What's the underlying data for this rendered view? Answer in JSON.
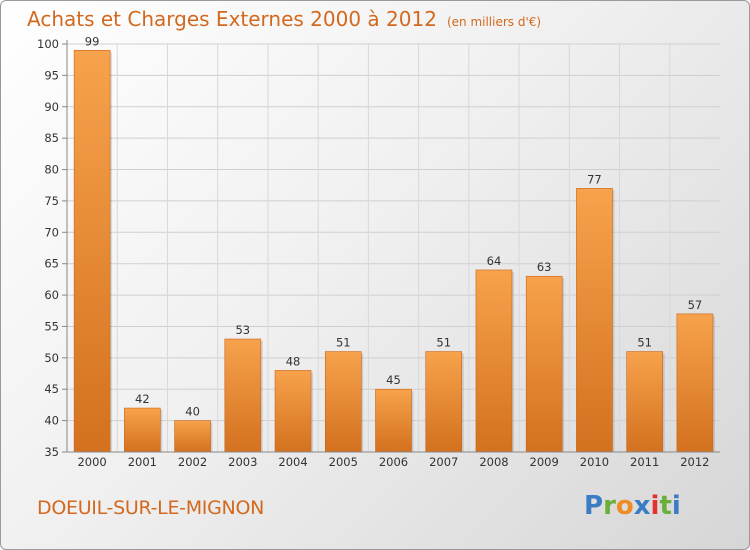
{
  "chart_data": {
    "type": "bar",
    "title": "Achats et Charges Externes 2000 à 2012",
    "subtitle": "(en milliers d'€)",
    "categories": [
      "2000",
      "2001",
      "2002",
      "2003",
      "2004",
      "2005",
      "2006",
      "2007",
      "2008",
      "2009",
      "2010",
      "2011",
      "2012"
    ],
    "values": [
      99,
      42,
      40,
      53,
      48,
      51,
      45,
      51,
      64,
      63,
      77,
      51,
      57
    ],
    "ylim": [
      35,
      100
    ],
    "yticks": [
      35,
      40,
      45,
      50,
      55,
      60,
      65,
      70,
      75,
      80,
      85,
      90,
      95,
      100
    ],
    "grid": true,
    "bar_color": "#f0943a",
    "bar_color_dark": "#d26e1c"
  },
  "commune": "DOEUIL-SUR-LE-MIGNON",
  "logo": {
    "text": "Proxiti",
    "letters": [
      "P",
      "r",
      "o",
      "x",
      "i",
      "t",
      "i"
    ],
    "colors": [
      "#3b7dc4",
      "#6cae3a",
      "#f08a24",
      "#3b7dc4",
      "#e3312d",
      "#6cae3a",
      "#3b7dc4"
    ]
  },
  "colors": {
    "accent": "#d2691e"
  }
}
